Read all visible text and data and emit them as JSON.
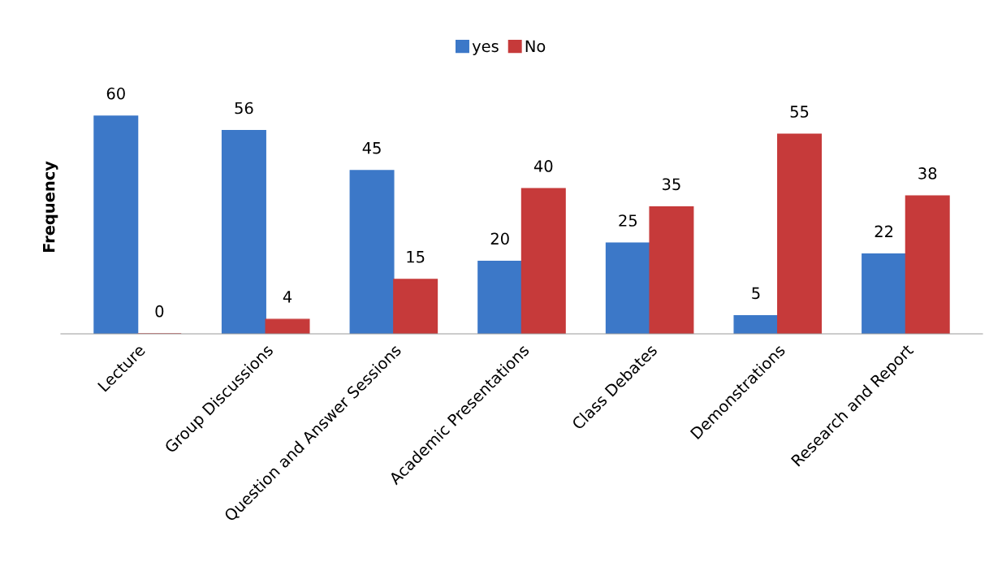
{
  "chart_data": {
    "type": "bar",
    "ylabel": "Frequency",
    "categories": [
      "Lecture",
      "Group Discussions",
      "Question and Answer Sessions",
      "Academic Presentations",
      "Class Debates",
      "Demonstrations",
      "Research and Report"
    ],
    "series": [
      {
        "name": "yes",
        "color": "#3c78c8",
        "values": [
          60,
          56,
          45,
          20,
          25,
          5,
          22
        ]
      },
      {
        "name": "No",
        "color": "#c63a3a",
        "values": [
          0,
          4,
          15,
          40,
          35,
          55,
          38
        ]
      }
    ],
    "data_labels": true,
    "legend": "top",
    "grid": false
  }
}
